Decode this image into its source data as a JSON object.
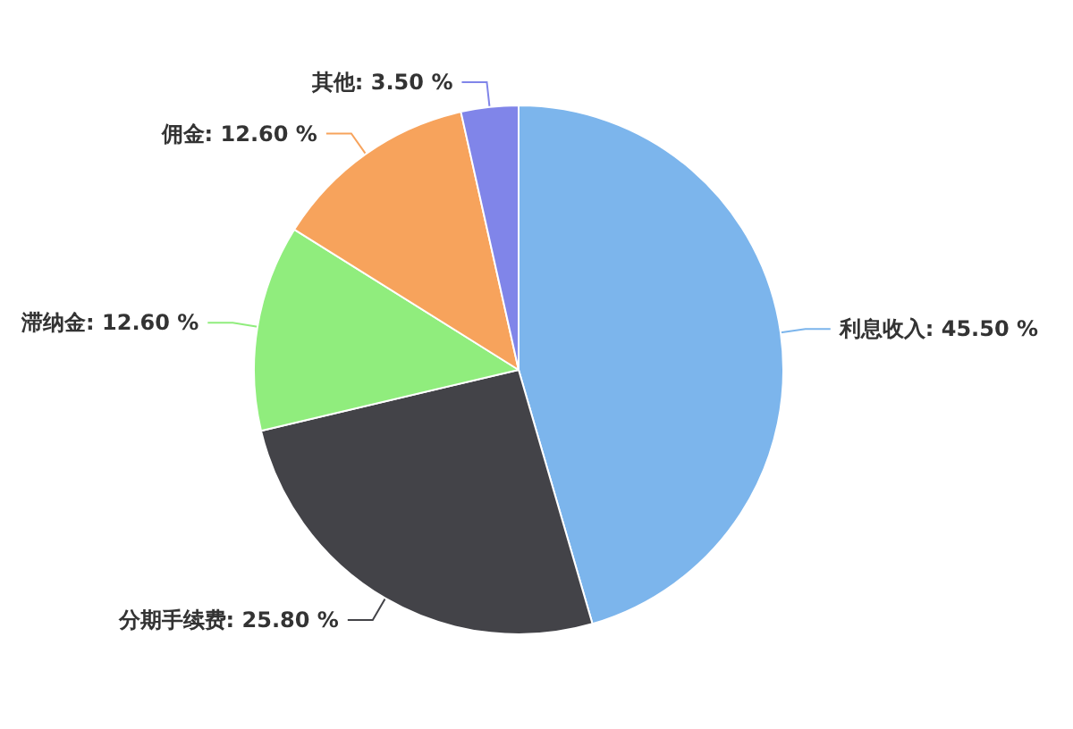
{
  "chart_data": {
    "type": "pie",
    "categories": [
      "利息收入",
      "分期手续费",
      "滞纳金",
      "佣金",
      "其他"
    ],
    "values": [
      45.5,
      25.8,
      12.6,
      12.6,
      3.5
    ],
    "value_labels": [
      "45.50 %",
      "25.80 %",
      "12.60 %",
      "12.60 %",
      "3.50 %"
    ],
    "colors": [
      "#7cb5ec",
      "#434348",
      "#90ed7d",
      "#f7a35c",
      "#8085e9"
    ]
  }
}
